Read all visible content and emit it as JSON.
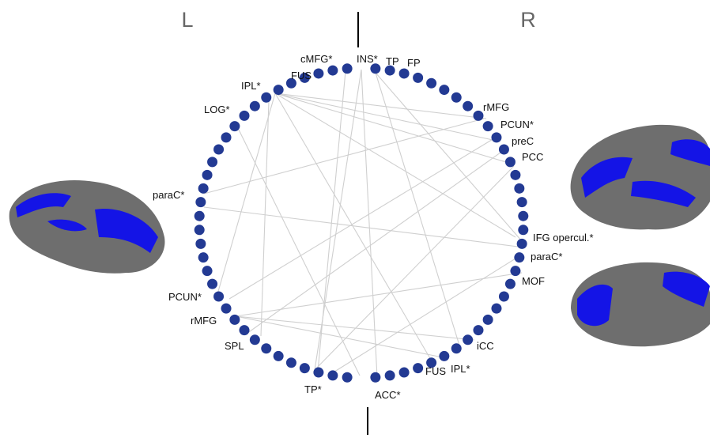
{
  "hemispheres": [
    "L",
    "R"
  ],
  "regions": [
    "cMFG*",
    "INS*",
    "TP",
    "FP",
    "FUS",
    "IPL*",
    "rMFG",
    "LOG*",
    "PCUN*",
    "preC",
    "PCC",
    "paraC*",
    "IFG opercul.*",
    "paraC*",
    "MOF",
    "PCUN*",
    "rMFG",
    "iCC",
    "SPL",
    "FUS",
    "IPL*",
    "TP*",
    "ACC*"
  ]
}
